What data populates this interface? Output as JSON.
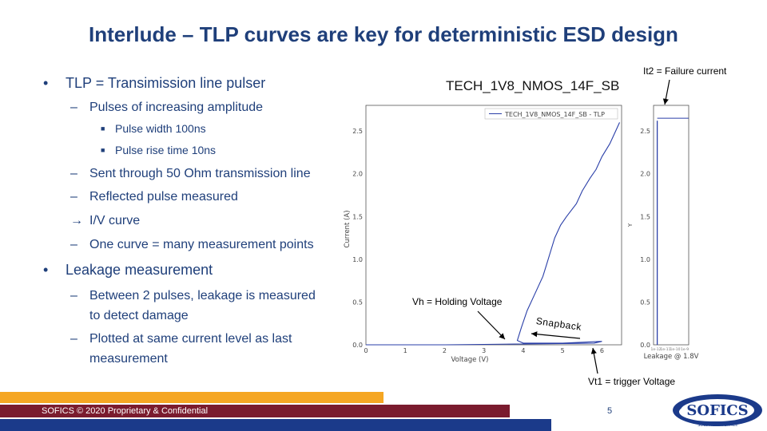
{
  "title": "Interlude – TLP curves are key for deterministic ESD design",
  "bullets": {
    "tlp": {
      "text": "TLP = Transimission line pulser",
      "sub1": "Pulses of increasing amplitude",
      "sub1a": "Pulse width 100ns",
      "sub1b": "Pulse rise time 10ns",
      "sub2": "Sent through 50 Ohm transmission line",
      "sub3": "Reflected pulse measured",
      "sub4": "I/V curve",
      "sub5": "One curve = many measurement points"
    },
    "leak": {
      "text": "Leakage measurement",
      "sub1_line1": "Between 2 pulses, leakage is measured",
      "sub1_line2": "to detect damage",
      "sub2_line1": "Plotted at same current level as last",
      "sub2_line2": "measurement"
    }
  },
  "chart_title": "TECH_1V8_NMOS_14F_SB",
  "annotations": {
    "it2": "It2 = Failure current",
    "vh": "Vh = Holding Voltage",
    "snapback": "Snapback",
    "vt1": "Vt1 = trigger Voltage"
  },
  "chart_data": [
    {
      "type": "line",
      "name": "TLP I/V curve",
      "legend": "TECH_1V8_NMOS_14F_SB - TLP",
      "xlabel": "Voltage (V)",
      "ylabel": "Current (A)",
      "xlim": [
        0,
        6.5
      ],
      "ylim": [
        0,
        2.8
      ],
      "x_ticks": [
        "0",
        "1",
        "2",
        "3",
        "4",
        "5",
        "6"
      ],
      "y_ticks": [
        "0.0",
        "0.5",
        "1.0",
        "1.5",
        "2.0",
        "2.5"
      ],
      "series": [
        {
          "name": "TECH_1V8_NMOS_14F_SB - TLP",
          "points": [
            [
              0,
              0
            ],
            [
              1,
              0
            ],
            [
              2,
              0
            ],
            [
              3,
              0.005
            ],
            [
              4,
              0.01
            ],
            [
              5,
              0.015
            ],
            [
              5.8,
              0.02
            ],
            [
              6.0,
              0.04
            ],
            [
              5.0,
              0.02
            ],
            [
              4.0,
              0.02
            ],
            [
              3.85,
              0.05
            ],
            [
              3.95,
              0.2
            ],
            [
              4.1,
              0.4
            ],
            [
              4.3,
              0.6
            ],
            [
              4.5,
              0.8
            ],
            [
              4.6,
              0.95
            ],
            [
              4.7,
              1.1
            ],
            [
              4.8,
              1.25
            ],
            [
              4.95,
              1.4
            ],
            [
              5.1,
              1.5
            ],
            [
              5.35,
              1.65
            ],
            [
              5.5,
              1.8
            ],
            [
              5.7,
              1.95
            ],
            [
              5.85,
              2.05
            ],
            [
              6.0,
              2.2
            ],
            [
              6.2,
              2.35
            ],
            [
              6.35,
              2.5
            ],
            [
              6.45,
              2.6
            ]
          ]
        }
      ]
    },
    {
      "type": "line",
      "name": "Leakage plot",
      "xlabel": "Leakage @ 1.8V",
      "ylabel": "Y",
      "ylim": [
        0,
        2.8
      ],
      "x_ticks": [
        "1e-12",
        "1e-11",
        "1e-10",
        "1e-9"
      ],
      "y_ticks": [
        "0.0",
        "0.5",
        "1.0",
        "1.5",
        "2.0",
        "2.5"
      ],
      "series": [
        {
          "name": "leakage",
          "leak_level": 0.35,
          "current_range": [
            0,
            2.62
          ],
          "fail_current": 2.65
        }
      ]
    }
  ],
  "footer": {
    "copyright": "SOFICS © 2020 Proprietary & Confidential",
    "page": "5"
  },
  "logo": {
    "name": "SOFICS",
    "tagline": "SOLUTIONS FOR ICs"
  },
  "colors": {
    "title": "#1f3f7a",
    "bar_orange": "#f5a623",
    "bar_maroon": "#7a1b2e",
    "bar_navy": "#1b3a8a",
    "curve": "#2a3fa8"
  }
}
